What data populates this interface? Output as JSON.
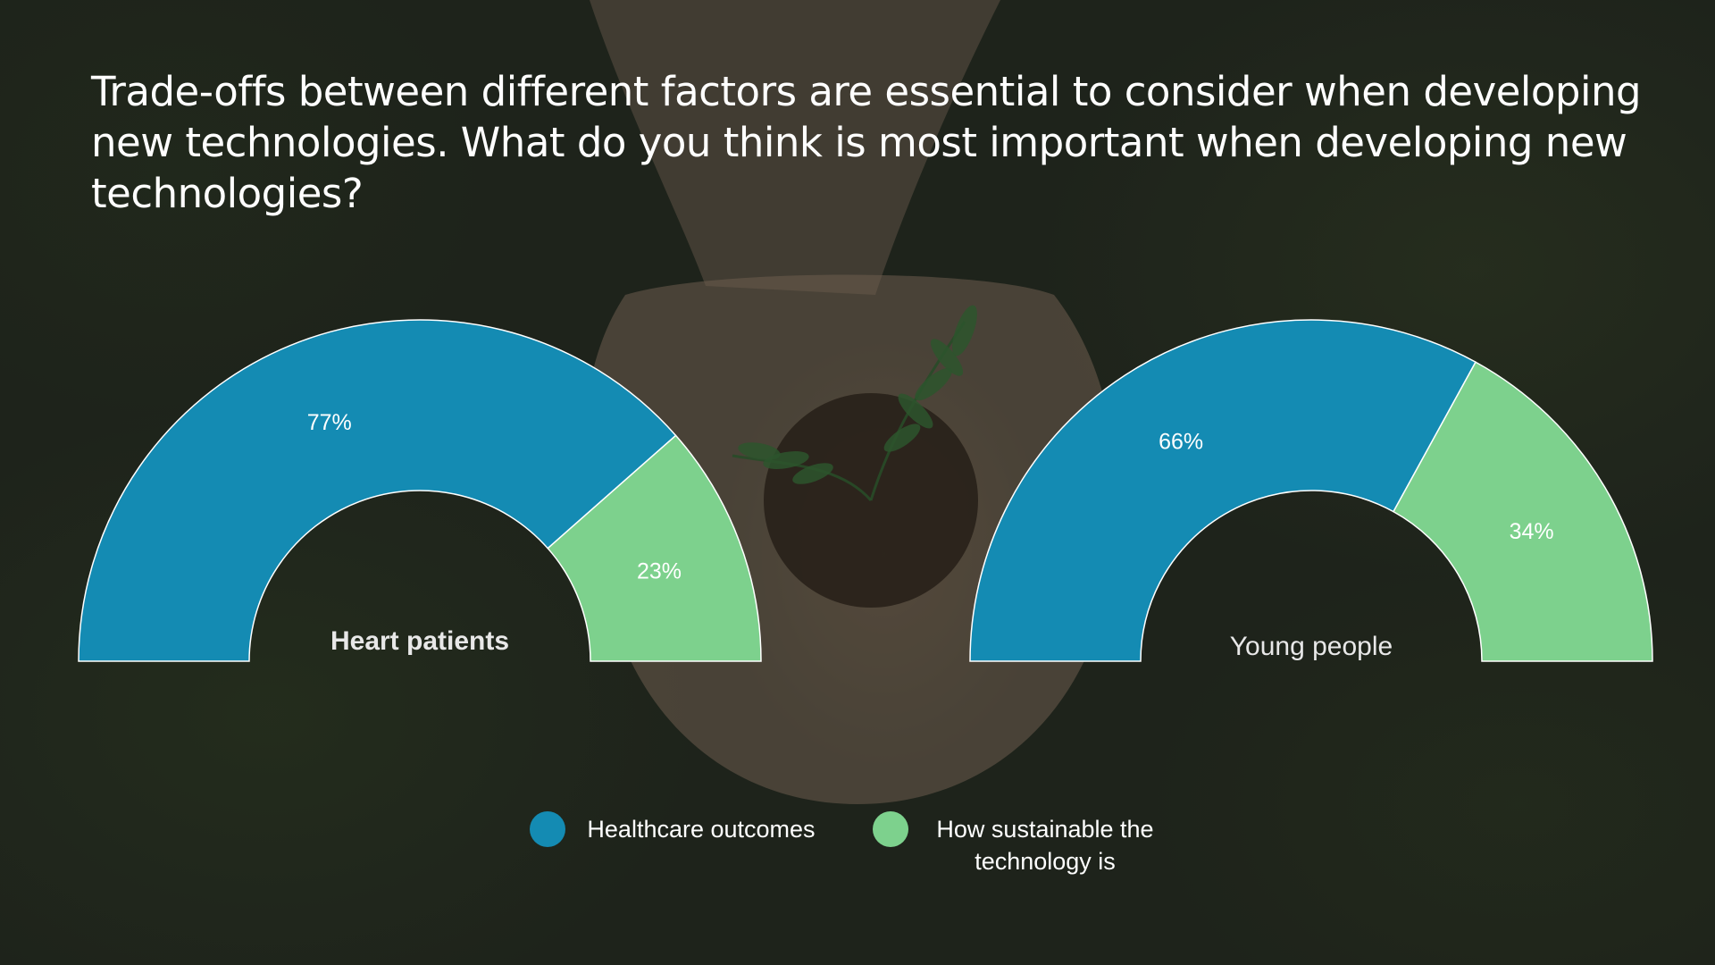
{
  "question": "Trade-offs between different factors are essential to consider when developing new technologies. What do you think is most important when developing new technologies?",
  "colors": {
    "healthcare": "#148bb3",
    "sustainable": "#7dd18d",
    "text": "#ffffff",
    "gauge_title": "#e8e8e8"
  },
  "legend": [
    {
      "label": "Healthcare outcomes",
      "color": "#148bb3"
    },
    {
      "label": "How sustainable the technology is",
      "color": "#7dd18d"
    }
  ],
  "chart_data": [
    {
      "type": "pie",
      "style": "half-donut gauge",
      "title": "Heart patients",
      "categories": [
        "Healthcare outcomes",
        "How sustainable the technology is"
      ],
      "values": [
        77,
        23
      ],
      "labels": [
        "77%",
        "23%"
      ]
    },
    {
      "type": "pie",
      "style": "half-donut gauge",
      "title": "Young people",
      "categories": [
        "Healthcare outcomes",
        "How sustainable the technology is"
      ],
      "values": [
        66,
        34
      ],
      "labels": [
        "66%",
        "34%"
      ]
    }
  ]
}
